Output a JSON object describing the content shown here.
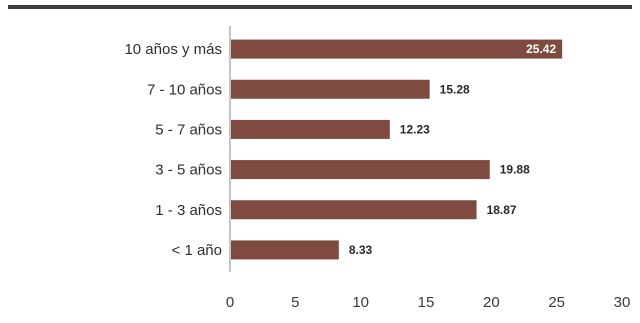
{
  "chart_data": {
    "type": "bar",
    "orientation": "horizontal",
    "categories": [
      "10 años y más",
      "7 - 10 años",
      "5 - 7 años",
      "3 - 5 años",
      "1 - 3 años",
      "< 1 año"
    ],
    "values": [
      25.42,
      15.28,
      12.23,
      19.88,
      18.87,
      8.33
    ],
    "value_labels": [
      "25.42",
      "15.28",
      "12.23",
      "19.88",
      "18.87",
      "8.33"
    ],
    "xlim": [
      0,
      30
    ],
    "xticks": [
      "0",
      "5",
      "10",
      "15",
      "20",
      "25",
      "30"
    ],
    "title": "",
    "xlabel": "",
    "ylabel": "",
    "grid": false,
    "bar_color": "#7f4a3f"
  }
}
